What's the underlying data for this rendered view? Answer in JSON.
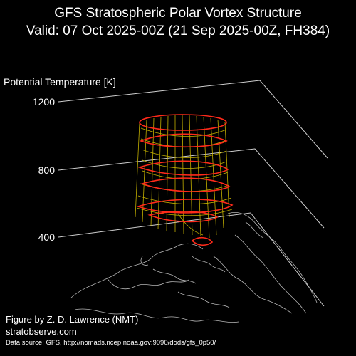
{
  "title_line1": "GFS Stratospheric Polar Vortex Structure",
  "title_line2": "Valid: 07 Oct 2025-00Z  (21 Sep 2025-00Z, FH384)",
  "z_axis": {
    "label": "Potential Temperature [K]",
    "ticks": [
      "1200",
      "800",
      "400"
    ]
  },
  "credit_line1": "Figure by Z. D. Lawrence (NMT)",
  "credit_line2": "stratobserve.com",
  "source": "Data source: GFS, http://nomads.ncep.noaa.gov:9090/dods/gfs_0p50/",
  "colors": {
    "background": "#000000",
    "vortex_edge": "#ff2a1a",
    "vortex_fill": "#e8d400",
    "coastline": "#bbbbbb",
    "gridline": "#cccccc"
  }
}
